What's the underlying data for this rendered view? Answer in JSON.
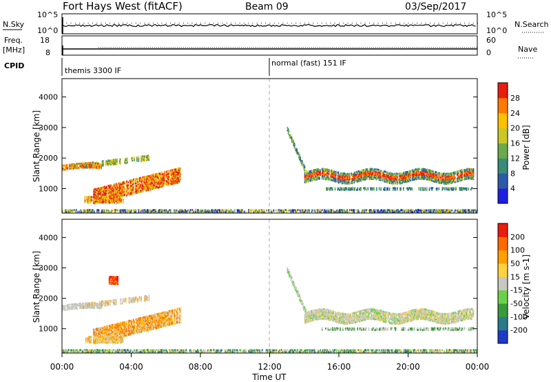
{
  "header": {
    "station": "Fort Hays West (fitACF)",
    "beam": "Beam 09",
    "date": "03/Sep/2017"
  },
  "noise_panel": {
    "left_label": "N.Sky",
    "right_label": "N.Search",
    "left_ticks": [
      "10^5",
      "10^0"
    ],
    "right_ticks": [
      "10^5",
      "10^0"
    ]
  },
  "freq_panel": {
    "left_label_1": "Freq.",
    "left_label_2": "[MHz]",
    "right_label": "Nave",
    "left_ticks": [
      "18",
      "8"
    ],
    "right_ticks": [
      "60",
      "0"
    ]
  },
  "cpid": {
    "label": "CPID",
    "modes": [
      {
        "name": "themis 3300 IF",
        "start_hour": 0
      },
      {
        "name": "normal (fast) 151 IF",
        "start_hour": 12
      }
    ]
  },
  "chart_data": [
    {
      "type": "heatmap",
      "parameter": "Power",
      "ylabel": "Slant Range [km]",
      "ylim": [
        200,
        4600
      ],
      "xlim": [
        0,
        24
      ],
      "yticks": [
        "1000",
        "2000",
        "3000",
        "4000"
      ],
      "colorbar_label": "Power [dB]",
      "colorbar_ticks": [
        "4",
        "8",
        "12",
        "16",
        "20",
        "24",
        "28"
      ],
      "colorscale": [
        "#1e1ee0",
        "#2c5aa8",
        "#3a8a78",
        "#6aaa48",
        "#c8c828",
        "#ffc000",
        "#ff7a00",
        "#e81e10"
      ]
    },
    {
      "type": "heatmap",
      "parameter": "Velocity",
      "ylabel": "Slant Range [km]",
      "ylim": [
        200,
        4600
      ],
      "xlim": [
        0,
        24
      ],
      "yticks": [
        "1000",
        "2000",
        "3000",
        "4000"
      ],
      "colorbar_label": "Velocity [m s-1]",
      "colorbar_ticks": [
        "200",
        "100",
        "50",
        "15",
        "-15",
        "-50",
        "-100",
        "-200"
      ],
      "colorscale": [
        "#1e3ac8",
        "#2a7a8a",
        "#3a9a3a",
        "#6ad24a",
        "#c8c8c0",
        "#ffd040",
        "#ffa000",
        "#ff6a00",
        "#e81e10"
      ]
    }
  ],
  "xaxis": {
    "ticks": [
      "00:00",
      "04:00",
      "08:00",
      "12:00",
      "16:00",
      "20:00",
      "00:00"
    ],
    "label": "Time UT"
  },
  "colors": {
    "scatter_gray": "#c8c8c0",
    "axis": "#000000",
    "dashed_line": "#aaaaaa"
  }
}
